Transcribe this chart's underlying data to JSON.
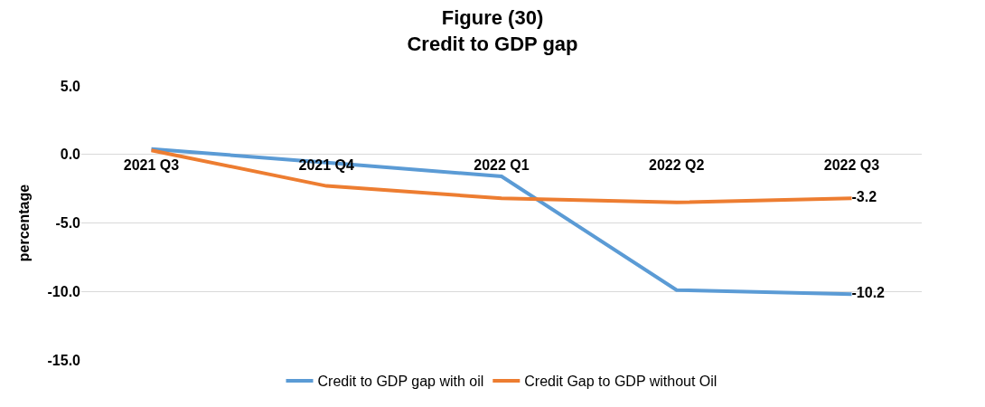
{
  "chart_data": {
    "type": "line",
    "title": "Figure (30)\nCredit to GDP gap",
    "ylabel": "percentage",
    "categories": [
      "2021 Q3",
      "2021 Q4",
      "2022 Q1",
      "2022 Q2",
      "2022 Q3"
    ],
    "series": [
      {
        "name": "Credit to GDP gap with oil",
        "color": "#5b9bd5",
        "values": [
          0.4,
          -0.6,
          -1.6,
          -9.9,
          -10.2
        ],
        "value_labels": [
          null,
          null,
          null,
          null,
          "-10.2"
        ]
      },
      {
        "name": "Credit Gap to GDP without Oil",
        "color": "#ed7d31",
        "values": [
          0.3,
          -2.3,
          -3.2,
          -3.5,
          -3.2
        ],
        "value_labels": [
          null,
          null,
          null,
          null,
          "-3.2"
        ]
      }
    ],
    "ylim": [
      -15,
      5
    ],
    "yticks": [
      {
        "value": -15,
        "label": "-15.0"
      },
      {
        "value": -10,
        "label": "-10.0"
      },
      {
        "value": -5,
        "label": "-5.0"
      },
      {
        "value": 0,
        "label": "0.0"
      },
      {
        "value": 5,
        "label": "5.0"
      }
    ],
    "grid": "y",
    "legend": "bottom",
    "marker": "none",
    "line_style": "solid"
  }
}
